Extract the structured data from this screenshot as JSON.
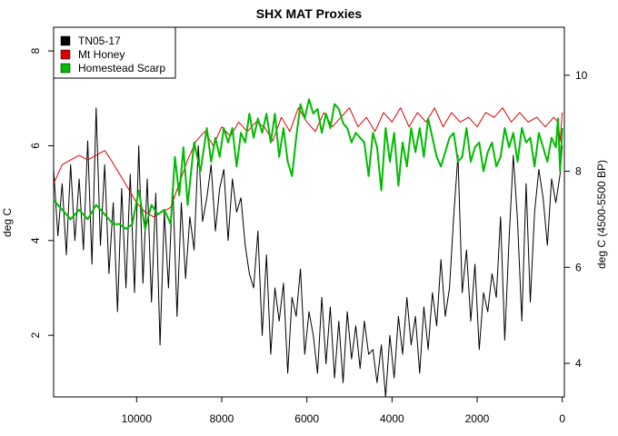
{
  "chart_data": {
    "type": "line",
    "title": "SHX MAT Proxies",
    "xlabel": "",
    "ylabel": "deg C",
    "ylabel_right": "deg C (4500-5500 BP)",
    "xlim": [
      11950,
      -50
    ],
    "ylim": [
      0.7,
      8.5
    ],
    "ylim_right": [
      3.3,
      11
    ],
    "x_ticks": [
      10000,
      8000,
      6000,
      4000,
      2000,
      0
    ],
    "x_tick_labels": [
      "10000",
      "8000",
      "6000",
      "4000",
      "2000",
      "0"
    ],
    "y_ticks": [
      2,
      4,
      6,
      8
    ],
    "y_tick_labels": [
      "2",
      "4",
      "6",
      "8"
    ],
    "y_ticks_right": [
      4,
      6,
      8,
      10
    ],
    "y_tick_labels_right": [
      "4",
      "6",
      "8",
      "10"
    ],
    "legend_position": "top-left",
    "series": [
      {
        "name": "TN05-17",
        "axis": "left",
        "color": "#000000",
        "width": 1,
        "x": [
          11950,
          11850,
          11750,
          11650,
          11550,
          11450,
          11350,
          11250,
          11150,
          11050,
          10950,
          10850,
          10750,
          10650,
          10550,
          10450,
          10350,
          10250,
          10150,
          10050,
          9950,
          9850,
          9750,
          9650,
          9550,
          9450,
          9350,
          9250,
          9150,
          9050,
          8950,
          8850,
          8750,
          8650,
          8550,
          8450,
          8350,
          8250,
          8150,
          8050,
          7950,
          7850,
          7750,
          7650,
          7550,
          7450,
          7350,
          7250,
          7150,
          7050,
          6950,
          6850,
          6750,
          6650,
          6550,
          6450,
          6350,
          6250,
          6150,
          6050,
          5950,
          5850,
          5750,
          5650,
          5550,
          5450,
          5350,
          5250,
          5150,
          5050,
          4950,
          4850,
          4750,
          4650,
          4550,
          4450,
          4350,
          4250,
          4150,
          4050,
          3950,
          3850,
          3750,
          3650,
          3550,
          3450,
          3350,
          3250,
          3150,
          3050,
          2950,
          2850,
          2750,
          2650,
          2550,
          2450,
          2350,
          2250,
          2150,
          2050,
          1950,
          1850,
          1750,
          1650,
          1550,
          1450,
          1350,
          1250,
          1150,
          1050,
          950,
          850,
          750,
          650,
          550,
          450,
          350,
          250,
          150,
          50,
          0
        ],
        "values": [
          5.5,
          4.1,
          5.2,
          3.7,
          5.6,
          4.0,
          5.3,
          3.8,
          6.1,
          3.5,
          6.8,
          3.9,
          5.6,
          3.3,
          4.8,
          2.5,
          5.1,
          3.0,
          5.4,
          2.9,
          6.0,
          3.1,
          5.3,
          2.7,
          5.0,
          1.8,
          4.6,
          3.0,
          5.2,
          2.4,
          4.8,
          3.2,
          4.5,
          3.8,
          6.0,
          4.4,
          4.9,
          5.6,
          4.2,
          5.1,
          5.5,
          4.0,
          5.3,
          4.6,
          4.9,
          3.9,
          3.3,
          3.0,
          4.2,
          2.0,
          3.7,
          1.6,
          3.0,
          2.3,
          3.1,
          1.2,
          2.8,
          2.4,
          3.4,
          1.6,
          2.5,
          2.0,
          1.2,
          2.8,
          1.4,
          2.6,
          1.1,
          2.3,
          1.0,
          2.5,
          1.5,
          2.2,
          1.3,
          2.3,
          1.6,
          1.7,
          1.0,
          1.8,
          0.7,
          2.0,
          1.1,
          2.4,
          1.6,
          2.8,
          1.8,
          2.4,
          1.2,
          2.6,
          1.7,
          2.9,
          2.2,
          3.6,
          2.4,
          3.0,
          4.5,
          5.8,
          2.9,
          3.8,
          2.3,
          3.5,
          1.7,
          2.9,
          2.5,
          3.3,
          2.8,
          4.5,
          1.9,
          4.0,
          5.8,
          4.4,
          2.3,
          5.2,
          2.7,
          4.6,
          5.5,
          4.9,
          3.9,
          5.3,
          4.8,
          5.4,
          6.0
        ]
      },
      {
        "name": "Mt Honey",
        "axis": "left",
        "color": "#dd0000",
        "width": 1,
        "x": [
          11950,
          11750,
          11550,
          11350,
          11150,
          10950,
          10750,
          10600,
          10400,
          10200,
          10000,
          9800,
          9600,
          9400,
          9200,
          9000,
          8800,
          8600,
          8400,
          8200,
          8000,
          7800,
          7600,
          7400,
          7200,
          7000,
          6800,
          6600,
          6400,
          6200,
          6000,
          5800,
          5600,
          5400,
          5200,
          5000,
          4800,
          4600,
          4400,
          4200,
          4000,
          3800,
          3600,
          3400,
          3200,
          3000,
          2800,
          2600,
          2400,
          2200,
          2000,
          1800,
          1600,
          1400,
          1200,
          1000,
          800,
          600,
          400,
          200,
          100,
          50,
          0
        ],
        "values": [
          5.2,
          5.6,
          5.7,
          5.8,
          5.7,
          5.8,
          5.9,
          5.7,
          5.4,
          5.1,
          4.8,
          4.6,
          4.5,
          4.6,
          4.7,
          5.2,
          5.7,
          6.1,
          6.3,
          6.0,
          6.4,
          6.2,
          6.5,
          6.3,
          6.5,
          6.4,
          6.1,
          6.6,
          6.3,
          6.8,
          6.5,
          6.3,
          6.7,
          6.4,
          6.6,
          6.8,
          6.4,
          6.6,
          6.3,
          6.7,
          6.5,
          6.8,
          6.4,
          6.7,
          6.5,
          6.8,
          6.4,
          6.7,
          6.5,
          6.6,
          6.4,
          6.7,
          6.6,
          6.8,
          6.5,
          6.7,
          6.5,
          6.6,
          6.4,
          6.6,
          6.5,
          6.1,
          6.7
        ]
      },
      {
        "name": "Homestead Scarp",
        "axis": "right",
        "color": "#00bb00",
        "width": 2,
        "x": [
          11950,
          11750,
          11550,
          11350,
          11150,
          10950,
          10750,
          10550,
          10400,
          10250,
          10100,
          9950,
          9800,
          9650,
          9500,
          9350,
          9200,
          9100,
          9000,
          8900,
          8800,
          8650,
          8500,
          8350,
          8250,
          8150,
          8050,
          7950,
          7850,
          7750,
          7650,
          7550,
          7450,
          7350,
          7250,
          7150,
          7050,
          6950,
          6850,
          6750,
          6650,
          6550,
          6450,
          6350,
          6250,
          6150,
          6050,
          5950,
          5850,
          5750,
          5650,
          5550,
          5450,
          5350,
          5250,
          5150,
          5050,
          4950,
          4850,
          4750,
          4650,
          4550,
          4450,
          4350,
          4250,
          4150,
          4050,
          3950,
          3850,
          3750,
          3650,
          3550,
          3450,
          3350,
          3250,
          3150,
          3050,
          2950,
          2850,
          2750,
          2650,
          2550,
          2450,
          2350,
          2250,
          2150,
          2050,
          1950,
          1850,
          1750,
          1650,
          1550,
          1450,
          1350,
          1250,
          1150,
          1050,
          950,
          850,
          750,
          650,
          550,
          450,
          350,
          250,
          150,
          100,
          50,
          0
        ],
        "values": [
          7.4,
          7.2,
          7.0,
          7.2,
          7.0,
          7.3,
          7.1,
          6.9,
          6.9,
          6.8,
          6.9,
          7.6,
          6.8,
          7.3,
          7.1,
          7.2,
          6.9,
          8.3,
          7.5,
          8.5,
          7.3,
          8.6,
          8.0,
          8.9,
          8.2,
          8.7,
          8.3,
          8.9,
          8.6,
          8.9,
          8.1,
          8.8,
          8.6,
          9.2,
          8.7,
          9.1,
          8.8,
          9.2,
          8.6,
          9.2,
          8.3,
          8.9,
          8.2,
          7.9,
          8.7,
          9.4,
          9.1,
          9.5,
          9.2,
          9.3,
          8.8,
          9.2,
          8.9,
          9.4,
          9.3,
          9.0,
          8.9,
          8.6,
          8.8,
          8.7,
          8.6,
          7.9,
          8.8,
          8.5,
          7.6,
          8.9,
          8.2,
          8.8,
          7.7,
          8.6,
          8.1,
          8.9,
          8.4,
          8.9,
          8.3,
          9.1,
          8.7,
          8.3,
          8.1,
          8.4,
          8.7,
          8.8,
          8.2,
          8.3,
          8.9,
          8.2,
          8.5,
          8.6,
          8.0,
          8.4,
          8.6,
          8.1,
          8.3,
          8.9,
          8.5,
          8.8,
          8.2,
          8.9,
          8.6,
          8.7,
          8.1,
          8.8,
          8.5,
          8.2,
          8.7,
          8.5,
          9.1,
          8.0,
          8.9
        ]
      }
    ]
  }
}
